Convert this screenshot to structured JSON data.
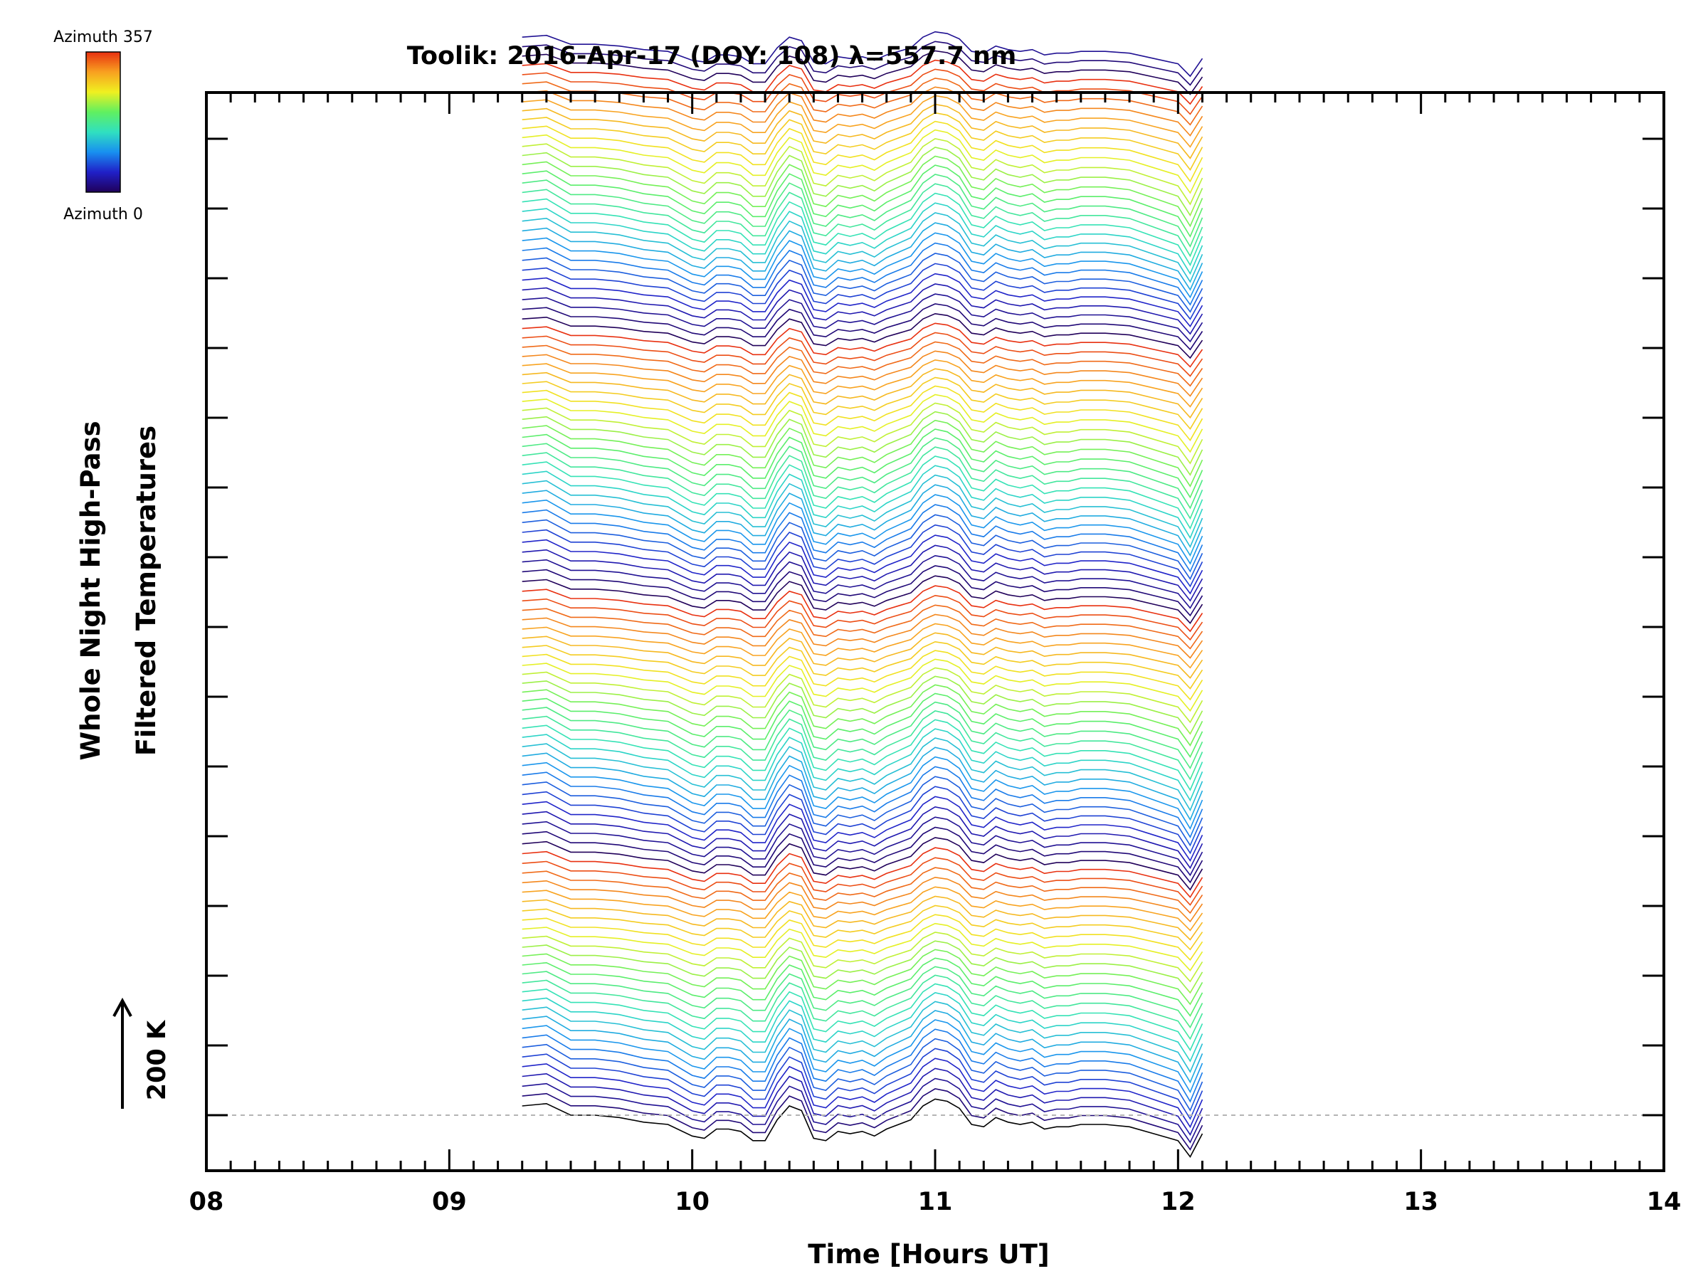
{
  "chart_data": {
    "type": "line",
    "title": "Toolik: 2016-Apr-17 (DOY: 108) λ=557.7 nm",
    "xlabel": "Time [Hours UT]",
    "ylabel_line1": "Whole Night High-Pass",
    "ylabel_line2": "Filtered Temperatures",
    "xlim": [
      8,
      14
    ],
    "x_tick_labels": [
      "08",
      "09",
      "10",
      "11",
      "12",
      "13",
      "14"
    ],
    "x_range_data": [
      9.3,
      12.1
    ],
    "scale_label": "200 K",
    "scale_value_k": 200,
    "n_traces": 115,
    "colorbar": {
      "top_label": "Azimuth 357",
      "bottom_label": "Azimuth 0",
      "min": 0,
      "max": 357,
      "colors": [
        "#20005a",
        "#2020c8",
        "#1890f0",
        "#30e0c0",
        "#60f060",
        "#f0f020",
        "#f8a020",
        "#e83010"
      ]
    },
    "baseline_trace": {
      "name": "Azimuth 0",
      "x": [
        9.3,
        9.4,
        9.5,
        9.6,
        9.7,
        9.8,
        9.9,
        10.0,
        10.05,
        10.1,
        10.15,
        10.2,
        10.25,
        10.3,
        10.35,
        10.4,
        10.45,
        10.5,
        10.55,
        10.6,
        10.65,
        10.7,
        10.75,
        10.8,
        10.85,
        10.9,
        10.95,
        11.0,
        11.05,
        11.1,
        11.15,
        11.2,
        11.25,
        11.3,
        11.35,
        11.4,
        11.45,
        11.5,
        11.55,
        11.6,
        11.7,
        11.8,
        11.9,
        12.0,
        12.05,
        12.1
      ],
      "y": [
        20,
        25,
        0,
        0,
        -5,
        -15,
        -20,
        -45,
        -50,
        -30,
        -30,
        -35,
        -55,
        -55,
        -10,
        20,
        10,
        -50,
        -55,
        -35,
        -40,
        -35,
        -45,
        -30,
        -20,
        -10,
        20,
        35,
        30,
        15,
        -20,
        -25,
        -5,
        -15,
        -20,
        -15,
        -30,
        -25,
        -25,
        -20,
        -20,
        -25,
        -40,
        -55,
        -90,
        -40
      ]
    }
  }
}
